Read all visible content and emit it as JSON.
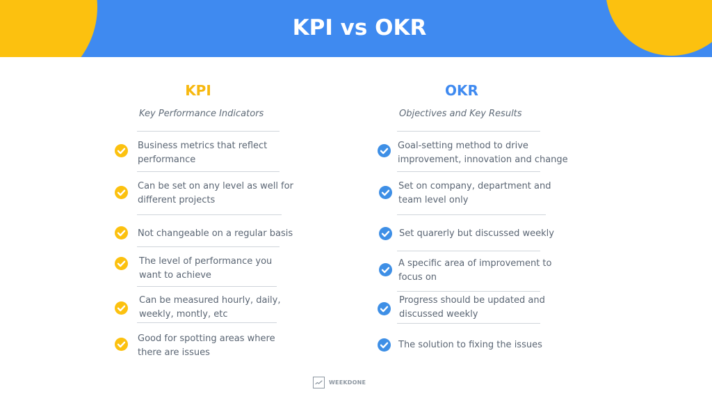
{
  "header": {
    "title": "KPI vs OKR"
  },
  "colors": {
    "banner": "#3f8af0",
    "accent_yellow": "#fcc10f",
    "accent_blue": "#3e8fe6",
    "text": "#5a6573"
  },
  "kpi": {
    "title": "KPI",
    "subtitle": "Key Performance Indicators",
    "items": [
      {
        "line1": "Business metrics that reflect",
        "line2": "performance"
      },
      {
        "line1": "Can be set on any level as well for",
        "line2": "different projects"
      },
      {
        "line1": "Not changeable on a regular basis",
        "line2": ""
      },
      {
        "line1": "The level of performance you",
        "line2": "want to achieve"
      },
      {
        "line1": "Can be measured hourly, daily,",
        "line2": "weekly, montly, etc"
      },
      {
        "line1": "Good for spotting areas where",
        "line2": "there are issues"
      }
    ]
  },
  "okr": {
    "title": "OKR",
    "subtitle": "Objectives and Key Results",
    "items": [
      {
        "line1": "Goal-setting method to drive",
        "line2": "improvement, innovation and change"
      },
      {
        "line1": "Set on company, department and",
        "line2": "team level only"
      },
      {
        "line1": "Set quarerly but discussed weekly",
        "line2": ""
      },
      {
        "line1": "A specific area of improvement to",
        "line2": "focus on"
      },
      {
        "line1": "Progress should be updated and",
        "line2": "discussed weekly"
      },
      {
        "line1": "The solution to fixing the issues",
        "line2": ""
      }
    ]
  },
  "footer": {
    "brand": "WEEKDONE",
    "icon": "chart-check-icon"
  }
}
